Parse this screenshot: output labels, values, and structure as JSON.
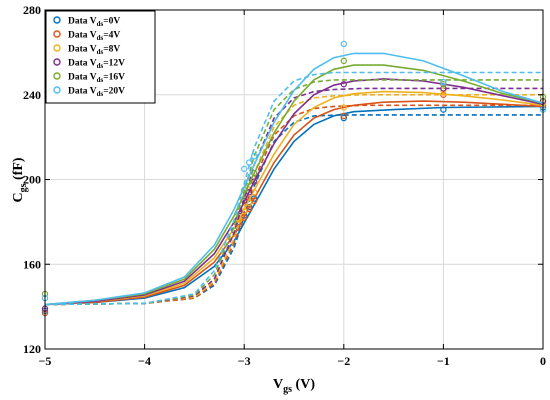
{
  "chart_data": {
    "type": "line",
    "xlabel": {
      "main": "V",
      "sub": "gs",
      "unit": " (V)"
    },
    "ylabel": {
      "main": "C",
      "sub": "gs",
      "unit": " (fF)"
    },
    "xlim": [
      -5,
      0
    ],
    "ylim": [
      120,
      280
    ],
    "xticks": [
      -5,
      -4,
      -3,
      -2,
      -1,
      0
    ],
    "yticks": [
      120,
      160,
      200,
      240,
      280
    ],
    "xtick_labels": [
      "−5",
      "−4",
      "−3",
      "−2",
      "−1",
      "0"
    ],
    "ytick_labels": [
      "120",
      "160",
      "200",
      "240",
      "280"
    ],
    "grid": true,
    "legend_position": "top-left",
    "series": [
      {
        "legend": {
          "pre": "Data V",
          "sub": "ds",
          "post": "=0V"
        },
        "color": "#0072BD",
        "data_points": {
          "x": [
            -5,
            -3.1,
            -3.05,
            -3.0,
            -2.95,
            -2.9,
            -2.0,
            -1.0,
            0
          ],
          "y": [
            138,
            176,
            180,
            183,
            187,
            191,
            229,
            233,
            234
          ]
        },
        "fit_solid": {
          "x": [
            -5,
            -4.5,
            -4.0,
            -3.6,
            -3.3,
            -3.1,
            -2.9,
            -2.7,
            -2.5,
            -2.3,
            -2.1,
            -1.9,
            -1.5,
            -1.0,
            -0.5,
            0
          ],
          "y": [
            141,
            142,
            144,
            149,
            159,
            171,
            188,
            205,
            218,
            226,
            230,
            232,
            233,
            234,
            234.2,
            234.5
          ]
        },
        "fit_dashed": {
          "x": [
            -5,
            -4.0,
            -3.5,
            -3.3,
            -3.1,
            -2.9,
            -2.7,
            -2.5,
            -2.3,
            -2.0,
            -1.5,
            0
          ],
          "y": [
            141,
            141.5,
            144,
            150,
            168,
            197,
            218,
            227,
            230,
            230.5,
            230.5,
            230.5
          ]
        }
      },
      {
        "legend": {
          "pre": "Data V",
          "sub": "ds",
          "post": "=4V"
        },
        "color": "#D95319",
        "data_points": {
          "x": [
            -5,
            -3.05,
            -3.0,
            -2.95,
            -2.9,
            -2.0,
            -1.0,
            0
          ],
          "y": [
            137,
            179,
            182,
            186,
            190,
            230,
            240,
            235
          ]
        },
        "fit_solid": {
          "x": [
            -5,
            -4.5,
            -4.0,
            -3.6,
            -3.3,
            -3.1,
            -2.9,
            -2.7,
            -2.5,
            -2.3,
            -2.1,
            -1.9,
            -1.6,
            -1.2,
            -0.8,
            -0.4,
            0
          ],
          "y": [
            141,
            142,
            144.5,
            150,
            161,
            174,
            191,
            208,
            221,
            229,
            233,
            235,
            236.5,
            237,
            236.5,
            235.5,
            234.5
          ]
        },
        "fit_dashed": {
          "x": [
            -5,
            -4.0,
            -3.5,
            -3.3,
            -3.1,
            -2.9,
            -2.7,
            -2.5,
            -2.3,
            -2.1,
            -1.8,
            0
          ],
          "y": [
            141,
            141.5,
            144,
            151,
            170,
            200,
            221,
            230,
            233.5,
            234.5,
            235,
            235
          ]
        }
      },
      {
        "legend": {
          "pre": "Data V",
          "sub": "ds",
          "post": "=8V"
        },
        "color": "#EDB120",
        "data_points": {
          "x": [
            -5,
            -3.05,
            -3.0,
            -2.95,
            -2.9,
            -2.0,
            -1.0,
            0
          ],
          "y": [
            139,
            181,
            185,
            189,
            194,
            234,
            242,
            236
          ]
        },
        "fit_solid": {
          "x": [
            -5,
            -4.5,
            -4.0,
            -3.6,
            -3.3,
            -3.1,
            -2.9,
            -2.7,
            -2.5,
            -2.3,
            -2.1,
            -1.9,
            -1.6,
            -1.2,
            -0.8,
            -0.4,
            0
          ],
          "y": [
            141,
            142.5,
            145,
            151,
            163,
            177,
            195,
            212,
            226,
            234,
            238.5,
            240.5,
            241.5,
            241,
            239.5,
            237.5,
            235
          ]
        },
        "fit_dashed": {
          "x": [
            -5,
            -4.0,
            -3.5,
            -3.3,
            -3.1,
            -2.9,
            -2.7,
            -2.5,
            -2.3,
            -2.1,
            -1.8,
            0
          ],
          "y": [
            141,
            141.5,
            144.5,
            152,
            172,
            203,
            225,
            235,
            238.5,
            239.5,
            240,
            240
          ]
        }
      },
      {
        "legend": {
          "pre": "Data V",
          "sub": "ds",
          "post": "=12V"
        },
        "color": "#7E2F8E",
        "data_points": {
          "x": [
            -5,
            -3.05,
            -3.0,
            -2.95,
            -2.9,
            -2.0,
            -1.0,
            0
          ],
          "y": [
            139,
            185,
            190,
            194,
            199,
            245,
            243,
            237
          ]
        },
        "fit_solid": {
          "x": [
            -5,
            -4.5,
            -4.0,
            -3.6,
            -3.3,
            -3.1,
            -2.9,
            -2.7,
            -2.5,
            -2.3,
            -2.1,
            -1.9,
            -1.6,
            -1.2,
            -0.8,
            -0.4,
            0
          ],
          "y": [
            141,
            142.5,
            145.5,
            152,
            165,
            180,
            199,
            217,
            231,
            240,
            244.5,
            246.5,
            247.5,
            246.5,
            243.5,
            239.5,
            235.5
          ]
        },
        "fit_dashed": {
          "x": [
            -5,
            -4.0,
            -3.5,
            -3.3,
            -3.1,
            -2.9,
            -2.7,
            -2.5,
            -2.3,
            -2.1,
            -1.8,
            0
          ],
          "y": [
            141,
            141.5,
            145,
            153,
            175,
            207,
            229,
            238.5,
            241.5,
            242.5,
            243,
            243
          ]
        }
      },
      {
        "legend": {
          "pre": "Data V",
          "sub": "ds",
          "post": "=16V"
        },
        "color": "#77AC30",
        "data_points": {
          "x": [
            -5,
            -3.0,
            -2.95,
            -2.9,
            -2.0,
            -1.0,
            0
          ],
          "y": [
            146,
            195,
            199,
            203,
            256,
            245,
            239
          ]
        },
        "fit_solid": {
          "x": [
            -5,
            -4.5,
            -4.0,
            -3.6,
            -3.3,
            -3.1,
            -2.9,
            -2.7,
            -2.5,
            -2.3,
            -2.1,
            -1.9,
            -1.6,
            -1.2,
            -0.8,
            -0.4,
            0
          ],
          "y": [
            141,
            143,
            146,
            153,
            167,
            183,
            203,
            222,
            237,
            247,
            252,
            254,
            254,
            251.5,
            246.5,
            240.5,
            236
          ]
        },
        "fit_dashed": {
          "x": [
            -5,
            -4.0,
            -3.5,
            -3.3,
            -3.1,
            -2.9,
            -2.7,
            -2.5,
            -2.3,
            -2.1,
            -1.8,
            0
          ],
          "y": [
            141,
            141.5,
            145.5,
            155,
            178,
            211,
            233,
            242.5,
            246,
            247,
            247,
            247
          ]
        }
      },
      {
        "legend": {
          "pre": "Data V",
          "sub": "ds",
          "post": "=20V"
        },
        "color": "#4DBEEE",
        "data_points": {
          "x": [
            -5,
            -3.0,
            -2.95,
            -2.9,
            -2.0,
            -1.0,
            0
          ],
          "y": [
            144,
            205,
            208,
            211,
            264,
            246,
            233
          ]
        },
        "fit_solid": {
          "x": [
            -5,
            -4.5,
            -4.0,
            -3.6,
            -3.3,
            -3.1,
            -2.9,
            -2.7,
            -2.5,
            -2.3,
            -2.1,
            -1.9,
            -1.6,
            -1.2,
            -0.8,
            -0.4,
            0
          ],
          "y": [
            141,
            143,
            146.5,
            154,
            169,
            186,
            207,
            227,
            242,
            252,
            257.5,
            259.5,
            259.5,
            256,
            249,
            241.5,
            236
          ]
        },
        "fit_dashed": {
          "x": [
            -5,
            -4.0,
            -3.5,
            -3.3,
            -3.1,
            -2.9,
            -2.7,
            -2.5,
            -2.3,
            -2.1,
            -1.8,
            0
          ],
          "y": [
            141,
            141.5,
            146,
            157,
            181,
            215,
            237,
            246.5,
            249.5,
            250.5,
            250.5,
            250.5
          ]
        }
      }
    ]
  }
}
